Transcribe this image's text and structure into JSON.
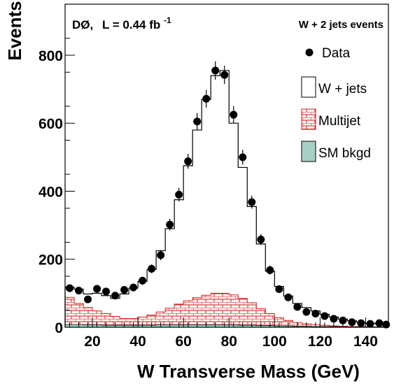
{
  "chart_data": {
    "type": "histogram",
    "xlabel": "W Transverse Mass  (GeV)",
    "ylabel": "Events",
    "xlim": [
      8,
      150
    ],
    "ylim": [
      0,
      950
    ],
    "xticks": [
      20,
      40,
      60,
      80,
      100,
      120,
      140
    ],
    "yticks": [
      0,
      200,
      400,
      600,
      800
    ],
    "annotation_left": {
      "experiment": "DØ,",
      "luminosity_prefix": "L = 0.44 fb",
      "luminosity_exponent": "-1"
    },
    "annotation_right": "W + 2 jets events",
    "bin_edges": [
      8,
      12,
      16,
      20,
      24,
      28,
      32,
      36,
      40,
      44,
      48,
      52,
      56,
      60,
      64,
      68,
      72,
      76,
      80,
      84,
      88,
      92,
      96,
      100,
      104,
      108,
      112,
      116,
      120,
      124,
      128,
      132,
      136,
      140,
      144,
      148,
      150
    ],
    "series": [
      {
        "name": "Data",
        "style": "points",
        "color": "#000000",
        "x": [
          10,
          14,
          18,
          22,
          26,
          30,
          34,
          38,
          42,
          46,
          50,
          54,
          58,
          62,
          66,
          70,
          74,
          78,
          82,
          86,
          90,
          94,
          98,
          102,
          106,
          110,
          114,
          118,
          122,
          126,
          130,
          134,
          138,
          142,
          146,
          149
        ],
        "y": [
          115,
          108,
          82,
          113,
          105,
          93,
          110,
          117,
          137,
          172,
          212,
          302,
          390,
          488,
          605,
          672,
          755,
          742,
          625,
          500,
          368,
          258,
          168,
          112,
          88,
          60,
          45,
          40,
          33,
          25,
          20,
          15,
          12,
          10,
          12,
          8
        ],
        "yerr": [
          11,
          10,
          9,
          11,
          10,
          10,
          10,
          11,
          12,
          13,
          15,
          17,
          20,
          22,
          25,
          26,
          27,
          27,
          25,
          22,
          19,
          16,
          13,
          11,
          9,
          8,
          7,
          6,
          6,
          5,
          4,
          4,
          3,
          3,
          3,
          3
        ]
      },
      {
        "name": "W + jets",
        "style": "step-outline",
        "color": "#000000",
        "values": [
          118,
          112,
          98,
          100,
          93,
          85,
          98,
          115,
          135,
          170,
          225,
          290,
          375,
          475,
          580,
          670,
          740,
          755,
          600,
          470,
          355,
          245,
          165,
          120,
          92,
          70,
          58,
          48,
          38,
          30,
          24,
          19,
          15,
          12,
          10,
          8
        ]
      },
      {
        "name": "Multijet",
        "style": "hatched-fill",
        "color": "#d02020",
        "fill": "#fff0f0",
        "values": [
          88,
          70,
          58,
          48,
          40,
          32,
          26,
          26,
          30,
          36,
          45,
          56,
          68,
          78,
          87,
          94,
          100,
          100,
          95,
          85,
          72,
          55,
          40,
          28,
          20,
          14,
          10,
          8,
          6,
          4,
          3,
          2,
          2,
          1,
          1,
          1
        ]
      },
      {
        "name": "SM bkgd",
        "style": "filled",
        "color": "#a8cfc4",
        "values": [
          8,
          8,
          7,
          7,
          6,
          6,
          6,
          6,
          6,
          6,
          7,
          7,
          7,
          7,
          7,
          7,
          7,
          7,
          7,
          6,
          6,
          5,
          5,
          4,
          4,
          3,
          3,
          2,
          2,
          2,
          1,
          1,
          1,
          1,
          1,
          1
        ]
      }
    ],
    "legend": {
      "placement": "right",
      "entries": [
        {
          "label": "Data",
          "marker": "dot"
        },
        {
          "label": "W + jets",
          "marker": "empty-box"
        },
        {
          "label": "Multijet",
          "marker": "hatched-box"
        },
        {
          "label": "SM bkgd",
          "marker": "filled-box"
        }
      ]
    }
  }
}
